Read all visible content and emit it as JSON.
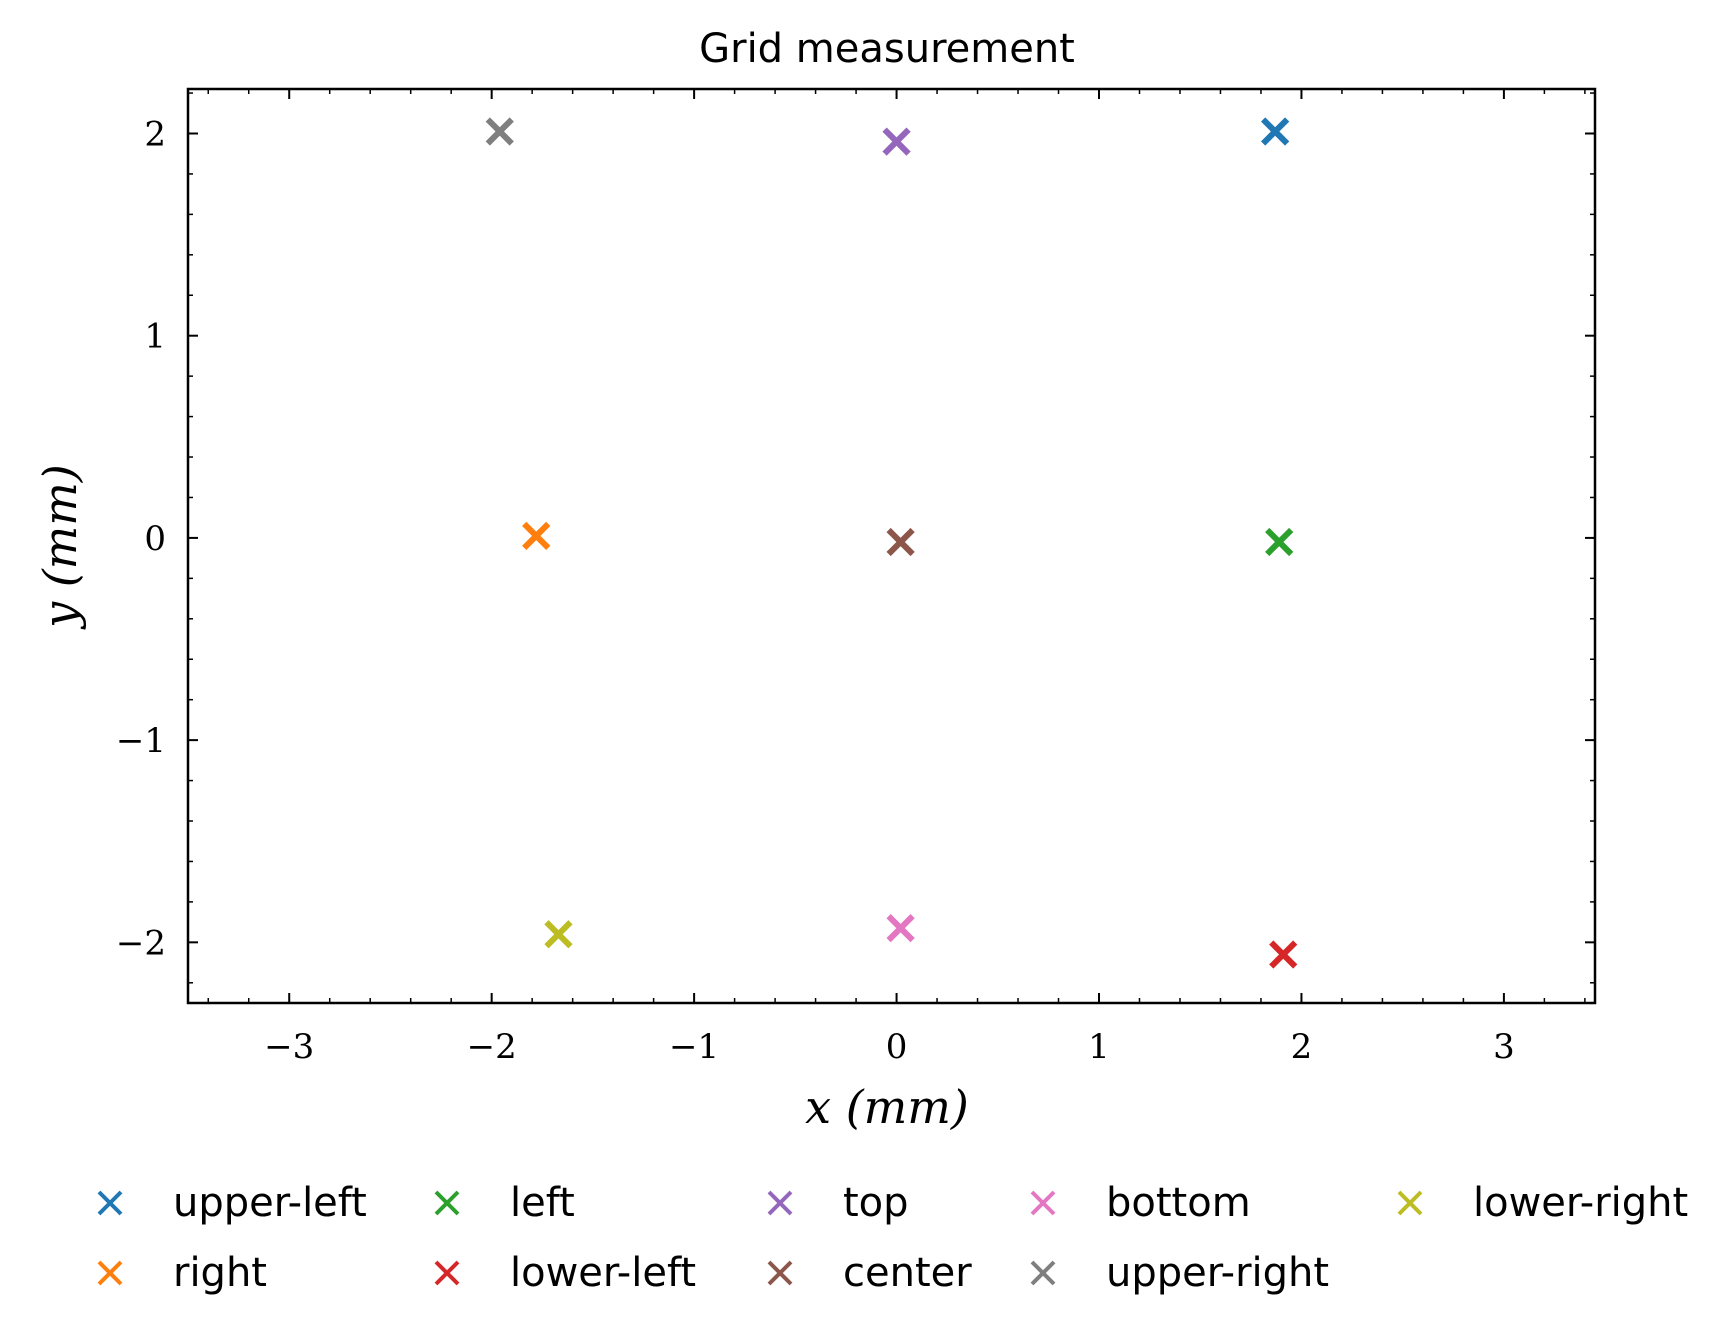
{
  "chart_data": {
    "type": "scatter",
    "title": "Grid measurement",
    "xlabel": "x (mm)",
    "ylabel": "y (mm)",
    "xlim": [
      -3.5,
      3.45
    ],
    "ylim": [
      -2.3,
      2.22
    ],
    "xticks": [
      -3,
      -2,
      -1,
      0,
      1,
      2,
      3
    ],
    "yticks": [
      -2,
      -1,
      0,
      1,
      2
    ],
    "xtick_labels": [
      "−3",
      "−2",
      "−1",
      "0",
      "1",
      "2",
      "3"
    ],
    "ytick_labels": [
      "−2",
      "−1",
      "0",
      "1",
      "2"
    ],
    "minor_ticks": true,
    "grid": false,
    "marker": "x",
    "legend_placement": "below",
    "legend_columns": 5,
    "series": [
      {
        "name": "upper-left",
        "color": "#1f77b4",
        "x": 1.87,
        "y": 2.01
      },
      {
        "name": "right",
        "color": "#ff7f0e",
        "x": -1.78,
        "y": 0.01
      },
      {
        "name": "left",
        "color": "#2ca02c",
        "x": 1.89,
        "y": -0.02
      },
      {
        "name": "lower-left",
        "color": "#d62728",
        "x": 1.91,
        "y": -2.06
      },
      {
        "name": "top",
        "color": "#9467bd",
        "x": 0.0,
        "y": 1.96
      },
      {
        "name": "center",
        "color": "#8c564b",
        "x": 0.02,
        "y": -0.02
      },
      {
        "name": "bottom",
        "color": "#e377c2",
        "x": 0.02,
        "y": -1.93
      },
      {
        "name": "upper-right",
        "color": "#7f7f7f",
        "x": -1.96,
        "y": 2.01
      },
      {
        "name": "lower-right",
        "color": "#bcbd22",
        "x": -1.67,
        "y": -1.96
      }
    ]
  }
}
